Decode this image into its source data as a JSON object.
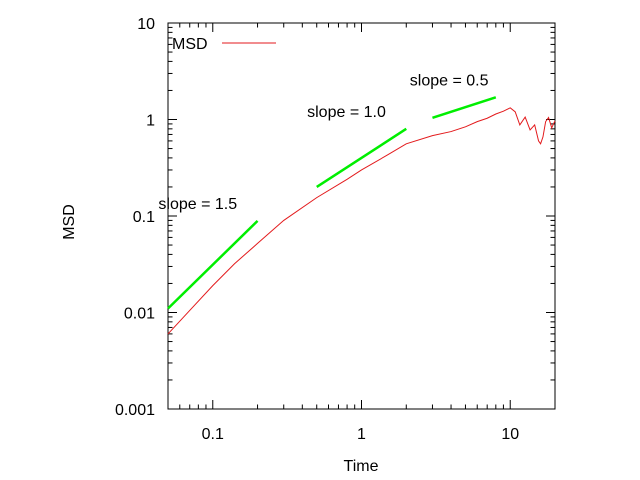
{
  "chart_data": {
    "type": "line",
    "xlabel": "Time",
    "ylabel": "MSD",
    "xscale": "log",
    "yscale": "log",
    "xlim": [
      0.05,
      20
    ],
    "ylim": [
      0.001,
      10
    ],
    "x_ticks": [
      {
        "value": 0.1,
        "label": "0.1"
      },
      {
        "value": 1,
        "label": "1"
      },
      {
        "value": 10,
        "label": "10"
      }
    ],
    "y_ticks": [
      {
        "value": 0.001,
        "label": "0.001"
      },
      {
        "value": 0.01,
        "label": "0.01"
      },
      {
        "value": 0.1,
        "label": "0.1"
      },
      {
        "value": 1,
        "label": "1"
      },
      {
        "value": 10,
        "label": "10"
      }
    ],
    "grid": false,
    "legend": {
      "position": "top-left",
      "entries": [
        {
          "name": "MSD",
          "color": "#e31a1c"
        }
      ]
    },
    "series": [
      {
        "name": "MSD",
        "color": "#e31a1c",
        "x": [
          0.05,
          0.07,
          0.1,
          0.14,
          0.2,
          0.3,
          0.5,
          0.8,
          1.0,
          1.5,
          2.0,
          3.0,
          4.0,
          5.0,
          6.0,
          7.0,
          8.0,
          9.0,
          10.0,
          10.8,
          11.6,
          12.6,
          13.6,
          14.6,
          15.5,
          16.0,
          16.6,
          17.3,
          18.1,
          19.0,
          20.0
        ],
        "y": [
          0.006,
          0.0105,
          0.019,
          0.032,
          0.052,
          0.09,
          0.155,
          0.24,
          0.3,
          0.43,
          0.56,
          0.68,
          0.75,
          0.84,
          0.95,
          1.03,
          1.14,
          1.22,
          1.32,
          1.2,
          0.88,
          1.06,
          0.78,
          0.88,
          0.6,
          0.56,
          0.66,
          0.95,
          1.05,
          0.82,
          0.97
        ]
      }
    ],
    "reference_lines": [
      {
        "label": "slope = 1.5",
        "color": "#00ee00",
        "x": [
          0.05,
          0.2
        ],
        "y": [
          0.011,
          0.089
        ]
      },
      {
        "label": "slope = 1.0",
        "color": "#00ee00",
        "x": [
          0.5,
          2.0
        ],
        "y": [
          0.2,
          0.8
        ]
      },
      {
        "label": "slope = 0.5",
        "color": "#00ee00",
        "x": [
          3.0,
          8.0
        ],
        "y": [
          1.04,
          1.7
        ]
      }
    ]
  }
}
